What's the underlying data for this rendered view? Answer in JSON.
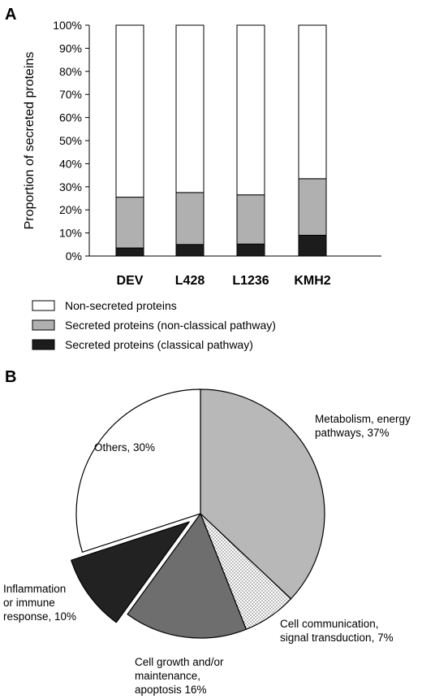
{
  "panel_a_letter": "A",
  "panel_b_letter": "B",
  "chart_data": [
    {
      "type": "bar",
      "stacked": true,
      "ylabel": "Proportion of secreted proteins",
      "ylim": [
        0,
        100
      ],
      "yticks": [
        "0%",
        "10%",
        "20%",
        "30%",
        "40%",
        "50%",
        "60%",
        "70%",
        "80%",
        "90%",
        "100%"
      ],
      "categories": [
        "DEV",
        "L428",
        "L1236",
        "KMH2"
      ],
      "series": [
        {
          "name": "Secreted proteins (classical pathway)",
          "color": "#1c1c1c",
          "values": [
            3.5,
            5,
            5.2,
            9
          ]
        },
        {
          "name": "Secreted proteins (non-classical pathway)",
          "color": "#b0b0b0",
          "values": [
            22,
            22.5,
            21.3,
            24.5
          ]
        },
        {
          "name": "Non-secreted proteins",
          "color": "#ffffff",
          "values": [
            74.5,
            72.5,
            73.5,
            66.5
          ]
        }
      ],
      "legend": {
        "position": "bottom",
        "items": [
          {
            "label": "Non-secreted proteins",
            "color": "#ffffff"
          },
          {
            "label": "Secreted proteins (non-classical pathway)",
            "color": "#b0b0b0"
          },
          {
            "label": "Secreted proteins (classical pathway)",
            "color": "#1c1c1c"
          }
        ]
      },
      "grid": false
    },
    {
      "type": "pie",
      "slices": [
        {
          "label_lines": [
            "Metabolism, energy",
            "pathways, 37%"
          ],
          "value": 37,
          "fill": "#b8b8b8",
          "pattern": "none"
        },
        {
          "label_lines": [
            "Cell communication,",
            "signal transduction,  7%"
          ],
          "value": 7,
          "fill": "#ffffff",
          "pattern": "dots"
        },
        {
          "label_lines": [
            "Cell growth and/or",
            "maintenance,",
            "apoptosis 16%"
          ],
          "value": 16,
          "fill": "#6e6e6e",
          "pattern": "none"
        },
        {
          "label_lines": [
            "Inflammation",
            "or immune",
            "response, 10%"
          ],
          "value": 10,
          "fill": "#222222",
          "pattern": "none",
          "exploded": true
        },
        {
          "label_lines": [
            "Others, 30%"
          ],
          "value": 30,
          "fill": "#ffffff",
          "pattern": "none"
        }
      ]
    }
  ]
}
